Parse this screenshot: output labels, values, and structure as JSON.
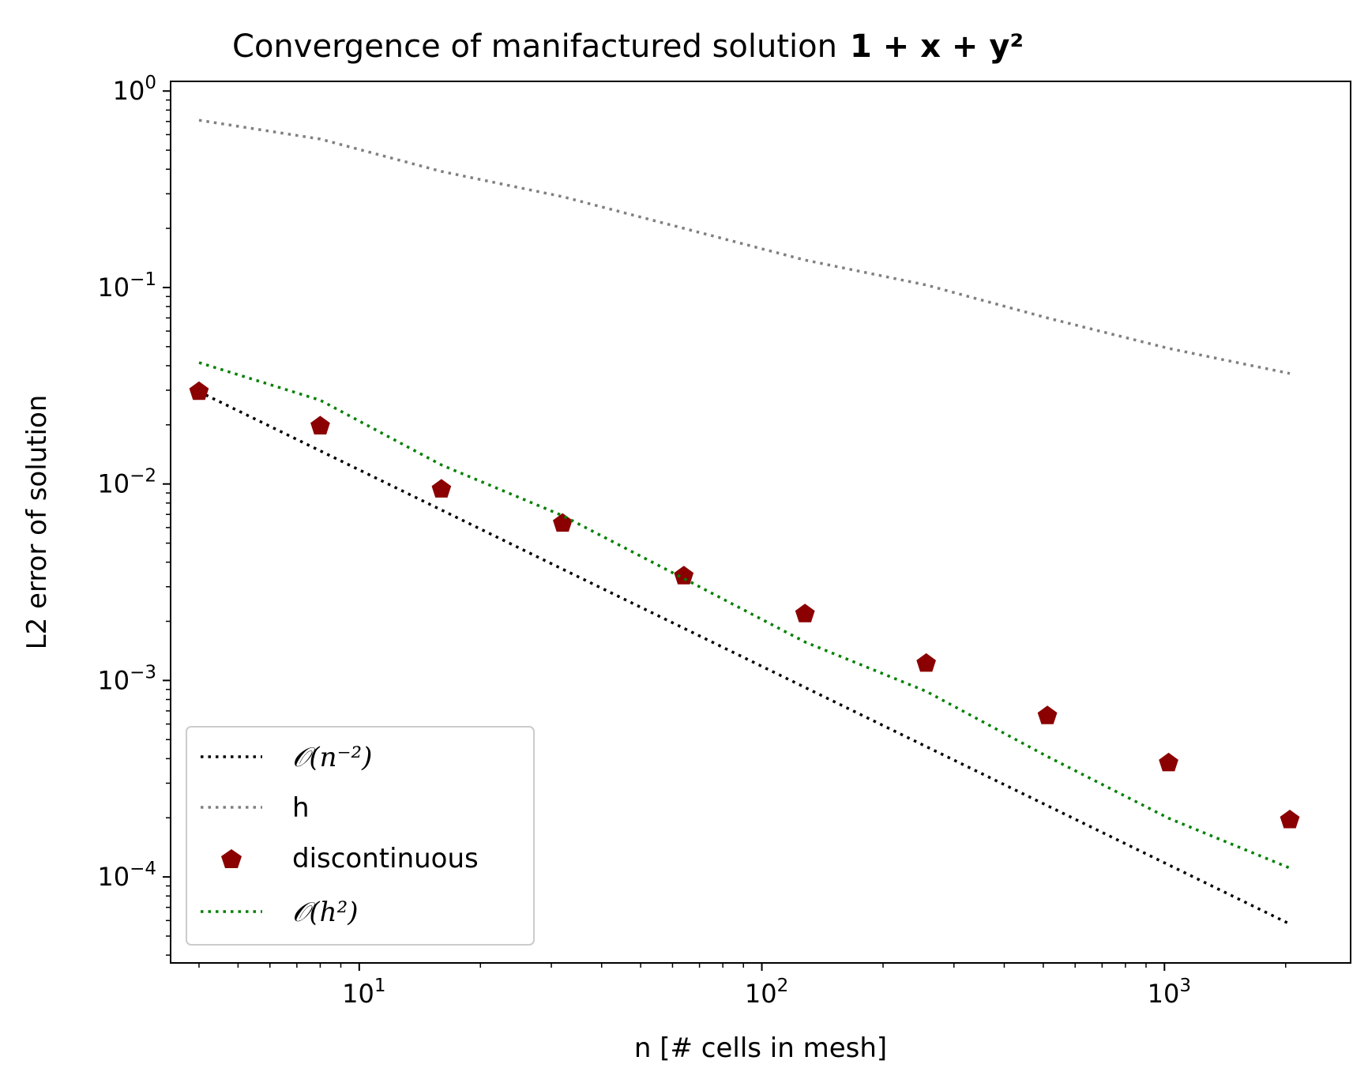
{
  "chart_data": {
    "type": "scatter",
    "title": "Convergence of manifactured solution",
    "title_math": "1 + x + y²",
    "xlabel": "n [# cells in mesh]",
    "ylabel": "L2 error of solution",
    "xscale": "log",
    "yscale": "log",
    "xlim": [
      3.4,
      2900
    ],
    "ylim": [
      3.65e-05,
      1.12
    ],
    "x_ticks": [
      {
        "value": 10,
        "base": "10",
        "exp": "1"
      },
      {
        "value": 100,
        "base": "10",
        "exp": "2"
      },
      {
        "value": 1000,
        "base": "10",
        "exp": "3"
      }
    ],
    "y_ticks": [
      {
        "value": 1,
        "base": "10",
        "exp": "0"
      },
      {
        "value": 0.1,
        "base": "10",
        "exp": "−1"
      },
      {
        "value": 0.01,
        "base": "10",
        "exp": "−2"
      },
      {
        "value": 0.001,
        "base": "10",
        "exp": "−3"
      },
      {
        "value": 0.0001,
        "base": "10",
        "exp": "−4"
      }
    ],
    "grid": false,
    "legend_position": "lower-left",
    "series": [
      {
        "name": "𝒪(n⁻²)",
        "style": "dotted-line",
        "color": "#000000",
        "x": [
          4,
          8,
          16,
          32,
          64,
          128,
          256,
          512,
          1024,
          2048
        ],
        "y": [
          0.0295,
          0.01475,
          0.007375,
          0.0036875,
          0.00184375,
          0.000921875,
          0.000460938,
          0.000230469,
          0.000115234,
          5.76e-05
        ]
      },
      {
        "name": "h",
        "style": "dotted-line",
        "color": "#808080",
        "x": [
          4,
          8,
          16,
          32,
          64,
          128,
          256,
          512,
          1024,
          2048
        ],
        "y": [
          0.71,
          0.57,
          0.39,
          0.29,
          0.2,
          0.138,
          0.103,
          0.07,
          0.049,
          0.0365
        ]
      },
      {
        "name": "discontinuous",
        "style": "marker-pentagon",
        "color": "#8b0000",
        "x": [
          4,
          8,
          16,
          32,
          64,
          128,
          256,
          512,
          1024,
          2048
        ],
        "y": [
          0.0295,
          0.0197,
          0.0094,
          0.0063,
          0.0034,
          0.00218,
          0.00122,
          0.00066,
          0.00038,
          0.000195
        ]
      },
      {
        "name": "𝒪(h²)",
        "style": "dotted-line",
        "color": "#008000",
        "x": [
          4,
          8,
          16,
          32,
          64,
          128,
          256,
          512,
          1024,
          2048
        ],
        "y": [
          0.0415,
          0.0267,
          0.0125,
          0.0069,
          0.0033,
          0.00157,
          0.00088,
          0.00041,
          0.000199,
          0.000111
        ]
      }
    ]
  }
}
